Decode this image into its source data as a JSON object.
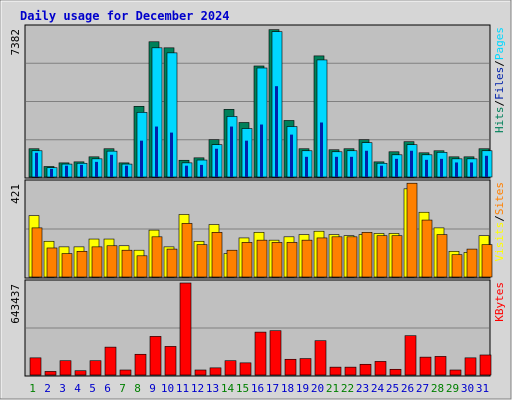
{
  "chart_data": {
    "type": "bar",
    "title": "Daily usage for December 2024",
    "days": [
      "1",
      "2",
      "3",
      "4",
      "5",
      "6",
      "7",
      "8",
      "9",
      "10",
      "11",
      "12",
      "13",
      "14",
      "15",
      "16",
      "17",
      "18",
      "19",
      "20",
      "21",
      "22",
      "23",
      "24",
      "25",
      "26",
      "27",
      "28",
      "29",
      "30",
      "31"
    ],
    "weekend_days": [
      "1",
      "7",
      "8",
      "14",
      "15",
      "21",
      "22",
      "28",
      "29"
    ],
    "colors": {
      "title": "#0000cc",
      "panel_bg": "#c0c0c0",
      "frame_bg": "#d6d6d6",
      "hits": "#00805a",
      "files": "#0022aa",
      "pages": "#00d8ff",
      "visits": "#ffff00",
      "sites": "#ff8000",
      "kbytes": "#ff0000",
      "weekday_label": "#0000cc",
      "weekend_label": "#008000"
    },
    "panels": [
      {
        "id": "hits-files-pages",
        "max_label": "7382",
        "max_value": 7382,
        "legend": [
          {
            "text": "Hits",
            "color": "#00805a"
          },
          {
            "text": "/",
            "color": "#000000"
          },
          {
            "text": "Files",
            "color": "#0022aa"
          },
          {
            "text": "/",
            "color": "#000000"
          },
          {
            "text": "Pages",
            "color": "#00d8ff"
          }
        ],
        "series": [
          {
            "name": "Hits",
            "values": [
              1400,
              520,
              700,
              750,
              1000,
              1400,
              700,
              3500,
              6700,
              6400,
              830,
              950,
              1850,
              3350,
              2700,
              5500,
              7300,
              2800,
              1400,
              6000,
              1350,
              1400,
              1850,
              750,
              1250,
              1750,
              1200,
              1300,
              1000,
              1000,
              1400
            ]
          },
          {
            "name": "Files",
            "values": [
              1200,
              400,
              560,
              600,
              750,
              1100,
              560,
              1800,
              2500,
              2200,
              560,
              600,
              1400,
              2500,
              1800,
              2600,
              4500,
              2100,
              1000,
              2700,
              1000,
              1000,
              1300,
              560,
              900,
              1300,
              850,
              900,
              720,
              720,
              1050
            ]
          },
          {
            "name": "Pages",
            "values": [
              1300,
              460,
              640,
              680,
              900,
              1280,
              640,
              3200,
              6400,
              6150,
              700,
              840,
              1600,
              3000,
              2400,
              5400,
              7200,
              2500,
              1300,
              5800,
              1250,
              1300,
              1700,
              680,
              1100,
              1600,
              1100,
              1220,
              900,
              900,
              1300
            ]
          }
        ]
      },
      {
        "id": "visits-sites",
        "max_label": "421",
        "max_value": 421,
        "legend": [
          {
            "text": "Visits",
            "color": "#ffff00"
          },
          {
            "text": "/",
            "color": "#000000"
          },
          {
            "text": "Sites",
            "color": "#ff8000"
          }
        ],
        "series": [
          {
            "name": "Visits",
            "values": [
              275,
              160,
              135,
              135,
              170,
              170,
              140,
              120,
              210,
              135,
              280,
              160,
              235,
              105,
              175,
              200,
              165,
              180,
              190,
              205,
              190,
              185,
              190,
              195,
              195,
              395,
              290,
              220,
              115,
              110,
              185
            ]
          },
          {
            "name": "Sites",
            "values": [
              220,
              130,
              105,
              115,
              135,
              140,
              120,
              95,
              180,
              125,
              240,
              145,
              200,
              120,
              155,
              165,
              155,
              155,
              165,
              175,
              180,
              180,
              200,
              185,
              185,
              420,
              255,
              190,
              100,
              125,
              145
            ]
          }
        ]
      },
      {
        "id": "kbytes",
        "max_label": "643437",
        "max_value": 643437,
        "legend": [
          {
            "text": "KBytes",
            "color": "#ff0000"
          }
        ],
        "series": [
          {
            "name": "KBytes",
            "values": [
              120000,
              25000,
              100000,
              30000,
              100000,
              195000,
              35000,
              145000,
              270000,
              200000,
              643437,
              35000,
              50000,
              100000,
              85000,
              300000,
              310000,
              110000,
              115000,
              240000,
              55000,
              55000,
              75000,
              95000,
              40000,
              275000,
              125000,
              130000,
              35000,
              120000,
              140000
            ]
          }
        ]
      }
    ]
  }
}
